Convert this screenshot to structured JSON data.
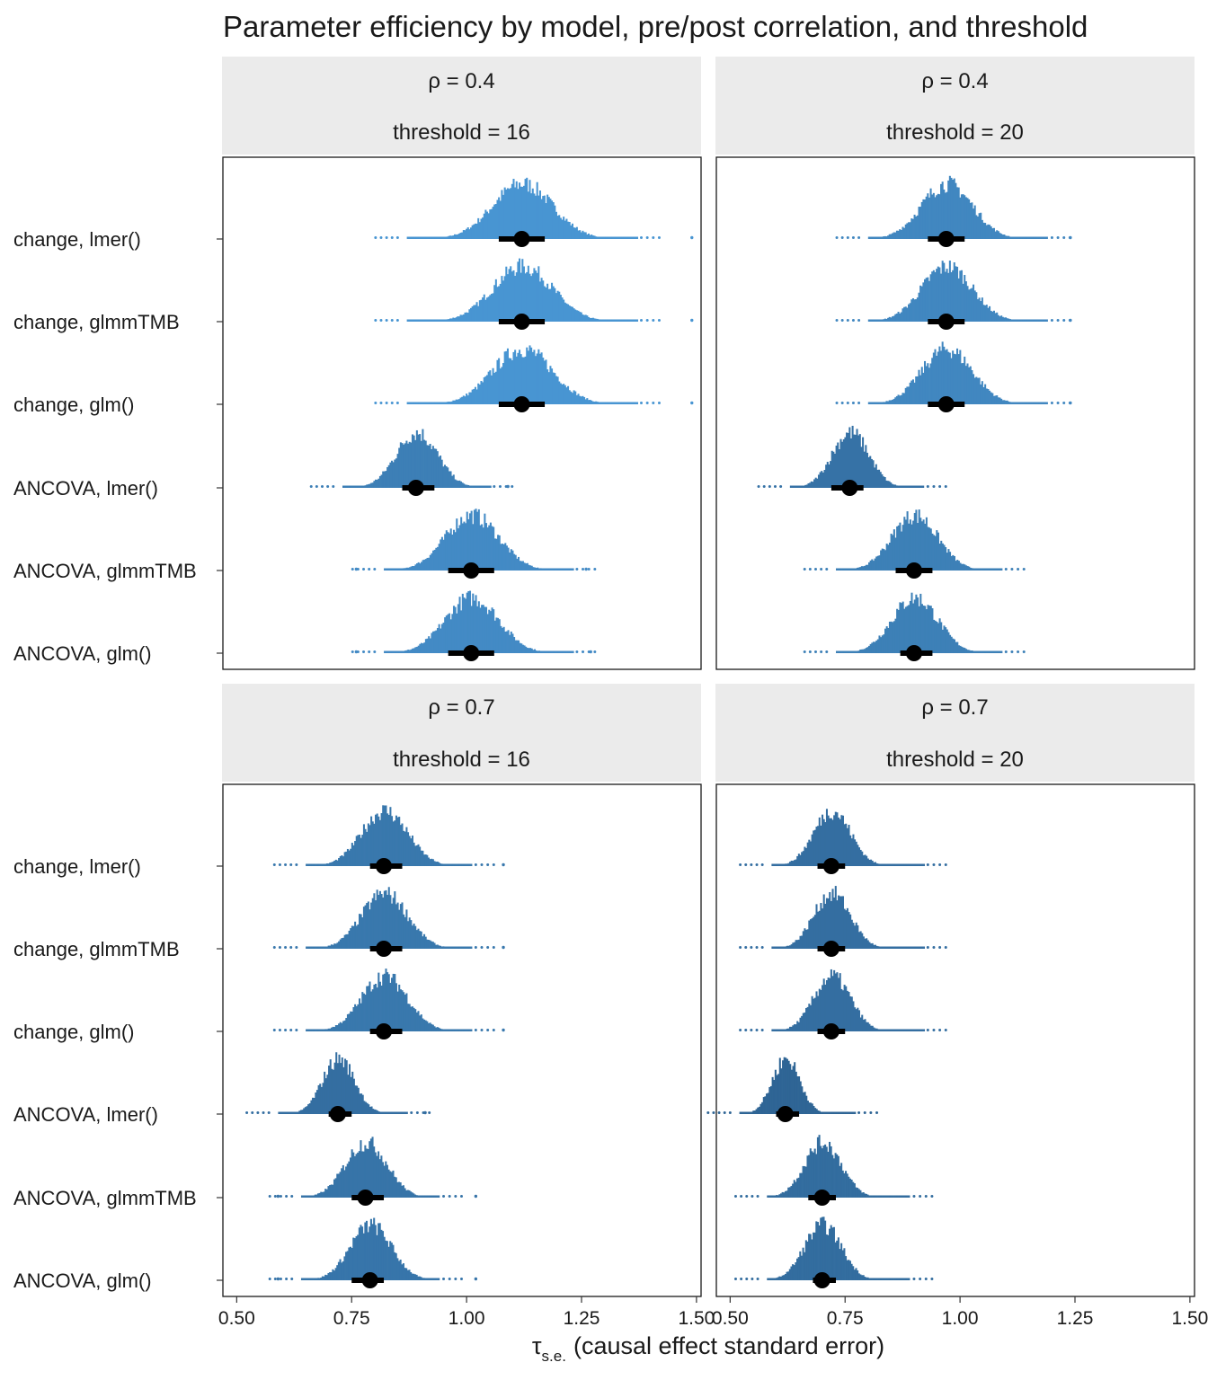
{
  "chart_data": {
    "type": "dotplot-interval",
    "title": "Parameter efficiency by model, pre/post correlation, and threshold",
    "xlabel_symbol": "τ",
    "xlabel_subscript": "s.e.",
    "xlabel_text": "(causal effect standard error)",
    "xlim": [
      0.47,
      1.51
    ],
    "x_ticks": [
      0.5,
      0.75,
      1.0,
      1.25,
      1.5
    ],
    "x_tick_labels": [
      "0.50",
      "0.75",
      "1.00",
      "1.25",
      "1.50"
    ],
    "model_labels": [
      "change, lmer()",
      "change, glmmTMB",
      "change, glm()",
      "ANCOVA, lmer()",
      "ANCOVA, glmmTMB",
      "ANCOVA, glm()"
    ],
    "fill_color_low": "#2b5e8c",
    "fill_color_high": "#4a98d6",
    "interval_color": "#000000",
    "strip_background": "#ebebeb",
    "facets": [
      {
        "rho_label": "ρ = 0.4",
        "threshold_label": "threshold = 16",
        "series": [
          {
            "model": "change, lmer()",
            "median": 1.12,
            "q25": 1.07,
            "q75": 1.17,
            "min": 0.87,
            "max": 1.37,
            "sd": 0.065,
            "outliers": [
              1.49
            ]
          },
          {
            "model": "change, glmmTMB",
            "median": 1.12,
            "q25": 1.07,
            "q75": 1.17,
            "min": 0.87,
            "max": 1.37,
            "sd": 0.065,
            "outliers": [
              1.49
            ]
          },
          {
            "model": "change, glm()",
            "median": 1.12,
            "q25": 1.07,
            "q75": 1.17,
            "min": 0.87,
            "max": 1.37,
            "sd": 0.065,
            "outliers": [
              1.49
            ]
          },
          {
            "model": "ANCOVA, lmer()",
            "median": 0.89,
            "q25": 0.86,
            "q75": 0.93,
            "min": 0.73,
            "max": 1.05,
            "sd": 0.045,
            "outliers": [
              1.09
            ]
          },
          {
            "model": "ANCOVA, glmmTMB",
            "median": 1.01,
            "q25": 0.96,
            "q75": 1.06,
            "min": 0.82,
            "max": 1.23,
            "sd": 0.058,
            "outliers": [
              0.76,
              1.26
            ]
          },
          {
            "model": "ANCOVA, glm()",
            "median": 1.01,
            "q25": 0.96,
            "q75": 1.06,
            "min": 0.82,
            "max": 1.23,
            "sd": 0.058,
            "outliers": [
              0.76,
              1.27
            ]
          }
        ]
      },
      {
        "rho_label": "ρ = 0.4",
        "threshold_label": "threshold = 20",
        "series": [
          {
            "model": "change, lmer()",
            "median": 0.97,
            "q25": 0.93,
            "q75": 1.01,
            "min": 0.8,
            "max": 1.19,
            "sd": 0.055,
            "outliers": [
              1.24
            ]
          },
          {
            "model": "change, glmmTMB",
            "median": 0.97,
            "q25": 0.93,
            "q75": 1.01,
            "min": 0.8,
            "max": 1.19,
            "sd": 0.055,
            "outliers": [
              1.24
            ]
          },
          {
            "model": "change, glm()",
            "median": 0.97,
            "q25": 0.93,
            "q75": 1.01,
            "min": 0.8,
            "max": 1.19,
            "sd": 0.055,
            "outliers": [
              1.24
            ]
          },
          {
            "model": "ANCOVA, lmer()",
            "median": 0.76,
            "q25": 0.72,
            "q75": 0.79,
            "min": 0.63,
            "max": 0.92,
            "sd": 0.04,
            "outliers": []
          },
          {
            "model": "ANCOVA, glmmTMB",
            "median": 0.9,
            "q25": 0.86,
            "q75": 0.94,
            "min": 0.73,
            "max": 1.09,
            "sd": 0.05,
            "outliers": []
          },
          {
            "model": "ANCOVA, glm()",
            "median": 0.9,
            "q25": 0.87,
            "q75": 0.94,
            "min": 0.73,
            "max": 1.09,
            "sd": 0.05,
            "outliers": []
          }
        ]
      },
      {
        "rho_label": "ρ = 0.7",
        "threshold_label": "threshold = 16",
        "series": [
          {
            "model": "change, lmer()",
            "median": 0.82,
            "q25": 0.79,
            "q75": 0.86,
            "min": 0.65,
            "max": 1.01,
            "sd": 0.05,
            "outliers": [
              1.08
            ]
          },
          {
            "model": "change, glmmTMB",
            "median": 0.82,
            "q25": 0.79,
            "q75": 0.86,
            "min": 0.65,
            "max": 1.01,
            "sd": 0.05,
            "outliers": [
              1.08
            ]
          },
          {
            "model": "change, glm()",
            "median": 0.82,
            "q25": 0.79,
            "q75": 0.86,
            "min": 0.65,
            "max": 1.01,
            "sd": 0.05,
            "outliers": [
              1.08
            ]
          },
          {
            "model": "ANCOVA, lmer()",
            "median": 0.72,
            "q25": 0.7,
            "q75": 0.75,
            "min": 0.59,
            "max": 0.87,
            "sd": 0.035,
            "outliers": [
              0.91
            ]
          },
          {
            "model": "ANCOVA, glmmTMB",
            "median": 0.78,
            "q25": 0.75,
            "q75": 0.82,
            "min": 0.64,
            "max": 0.94,
            "sd": 0.045,
            "outliers": [
              0.59,
              1.02
            ]
          },
          {
            "model": "ANCOVA, glm()",
            "median": 0.79,
            "q25": 0.75,
            "q75": 0.82,
            "min": 0.64,
            "max": 0.94,
            "sd": 0.045,
            "outliers": [
              0.59,
              1.02
            ]
          }
        ]
      },
      {
        "rho_label": "ρ = 0.7",
        "threshold_label": "threshold = 20",
        "series": [
          {
            "model": "change, lmer()",
            "median": 0.72,
            "q25": 0.69,
            "q75": 0.75,
            "min": 0.59,
            "max": 0.92,
            "sd": 0.04,
            "outliers": []
          },
          {
            "model": "change, glmmTMB",
            "median": 0.72,
            "q25": 0.69,
            "q75": 0.75,
            "min": 0.59,
            "max": 0.92,
            "sd": 0.04,
            "outliers": []
          },
          {
            "model": "change, glm()",
            "median": 0.72,
            "q25": 0.69,
            "q75": 0.75,
            "min": 0.59,
            "max": 0.92,
            "sd": 0.04,
            "outliers": []
          },
          {
            "model": "ANCOVA, lmer()",
            "median": 0.62,
            "q25": 0.6,
            "q75": 0.65,
            "min": 0.52,
            "max": 0.77,
            "sd": 0.03,
            "outliers": []
          },
          {
            "model": "ANCOVA, glmmTMB",
            "median": 0.7,
            "q25": 0.67,
            "q75": 0.73,
            "min": 0.58,
            "max": 0.89,
            "sd": 0.04,
            "outliers": []
          },
          {
            "model": "ANCOVA, glm()",
            "median": 0.7,
            "q25": 0.68,
            "q75": 0.73,
            "min": 0.58,
            "max": 0.89,
            "sd": 0.04,
            "outliers": []
          }
        ]
      }
    ]
  }
}
